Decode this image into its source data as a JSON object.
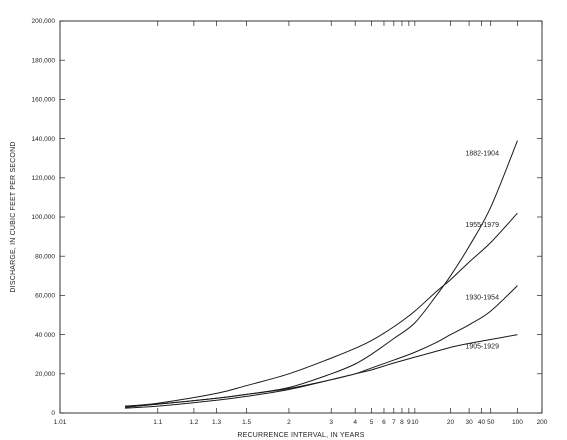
{
  "chart_data": {
    "type": "line",
    "xlabel": "RECURRENCE INTERVAL, IN YEARS",
    "ylabel": "DISCHARGE, IN CUBIC FEET PER SECOND",
    "x_scale": "probability",
    "xlim": [
      1.01,
      200
    ],
    "ylim": [
      0,
      200000
    ],
    "grid": false,
    "legend": "labels-on-lines",
    "x_ticks": [
      {
        "value": 1.01,
        "label": "1.01"
      },
      {
        "value": 1.1,
        "label": "1.1"
      },
      {
        "value": 1.2,
        "label": "1.2"
      },
      {
        "value": 1.3,
        "label": "1.3"
      },
      {
        "value": 1.5,
        "label": "1.5"
      },
      {
        "value": 2,
        "label": "2"
      },
      {
        "value": 3,
        "label": "3"
      },
      {
        "value": 4,
        "label": "4"
      },
      {
        "value": 5,
        "label": "5"
      },
      {
        "value": 6,
        "label": "6"
      },
      {
        "value": 7,
        "label": "7"
      },
      {
        "value": 8,
        "label": "8"
      },
      {
        "value": 9,
        "label": "9"
      },
      {
        "value": 10,
        "label": "10"
      },
      {
        "value": 20,
        "label": "20"
      },
      {
        "value": 30,
        "label": "30"
      },
      {
        "value": 40,
        "label": "40"
      },
      {
        "value": 50,
        "label": "50"
      },
      {
        "value": 100,
        "label": "100"
      },
      {
        "value": 200,
        "label": "200"
      }
    ],
    "y_ticks": [
      {
        "value": 0,
        "label": "0"
      },
      {
        "value": 20000,
        "label": "20,000"
      },
      {
        "value": 40000,
        "label": "40 000"
      },
      {
        "value": 60000,
        "label": "60,000"
      },
      {
        "value": 80000,
        "label": "80,000"
      },
      {
        "value": 100000,
        "label": "100,000"
      },
      {
        "value": 120000,
        "label": "120,000"
      },
      {
        "value": 140000,
        "label": "140,000"
      },
      {
        "value": 160000,
        "label": "160,000"
      },
      {
        "value": 180000,
        "label": "180,000"
      },
      {
        "value": 200000,
        "label": "200,000"
      }
    ],
    "series": [
      {
        "name": "1882-1904",
        "x": [
          1.05,
          1.1,
          1.3,
          1.5,
          2,
          3,
          4,
          5,
          7,
          10,
          15,
          20,
          30,
          50,
          100
        ],
        "y": [
          3000,
          4500,
          7500,
          9500,
          13000,
          20000,
          25000,
          30000,
          38000,
          46000,
          60000,
          70000,
          85000,
          105000,
          139000
        ]
      },
      {
        "name": "1955-1979",
        "x": [
          1.05,
          1.1,
          1.3,
          1.5,
          2,
          3,
          4,
          5,
          7,
          10,
          15,
          20,
          30,
          50,
          100
        ],
        "y": [
          3500,
          5000,
          10000,
          14000,
          20000,
          28000,
          33000,
          37000,
          44000,
          52000,
          62000,
          68000,
          77000,
          87000,
          102000
        ]
      },
      {
        "name": "1930-1954",
        "x": [
          1.05,
          1.1,
          1.3,
          1.5,
          2,
          3,
          4,
          5,
          7,
          10,
          15,
          20,
          30,
          50,
          100
        ],
        "y": [
          2500,
          3500,
          6500,
          8500,
          12000,
          17000,
          20000,
          23000,
          27000,
          31000,
          36000,
          40000,
          45000,
          52000,
          65000
        ]
      },
      {
        "name": "1905-1929",
        "x": [
          1.05,
          1.1,
          1.3,
          1.5,
          2,
          3,
          4,
          5,
          7,
          10,
          15,
          20,
          30,
          50,
          100
        ],
        "y": [
          3000,
          4500,
          7500,
          9500,
          12500,
          17000,
          20000,
          22000,
          25500,
          28500,
          31500,
          33500,
          35500,
          37500,
          40000
        ]
      }
    ]
  }
}
